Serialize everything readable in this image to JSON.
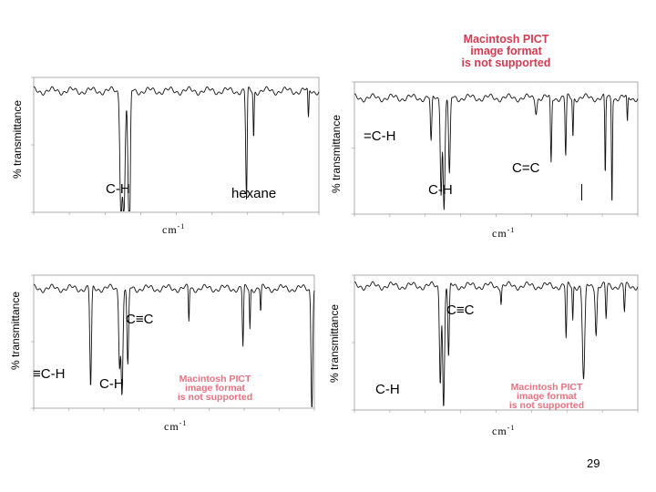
{
  "page_number": "29",
  "pict_notice": {
    "lines": [
      "Macintosh PICT",
      "image format",
      "is not supported"
    ],
    "color": "#d23c52"
  },
  "chart_data": [
    {
      "type": "line",
      "ylabel": "% transmittance",
      "xlabel": "cm-1",
      "xlim": [
        4000,
        600
      ],
      "ylim": [
        0,
        100
      ],
      "annotations": [
        "C-H",
        "hexane"
      ],
      "series": [
        {
          "baseline": 90,
          "bands": [
            {
              "x": 2960,
              "depth": 88,
              "width": 18
            },
            {
              "x": 2925,
              "depth": 92,
              "width": 20
            },
            {
              "x": 2870,
              "depth": 70,
              "width": 15
            },
            {
              "x": 2855,
              "depth": 80,
              "width": 12
            },
            {
              "x": 1467,
              "depth": 55,
              "width": 12
            },
            {
              "x": 1460,
              "depth": 38,
              "width": 8
            },
            {
              "x": 1378,
              "depth": 35,
              "width": 8
            },
            {
              "x": 725,
              "depth": 22,
              "width": 8
            }
          ]
        }
      ]
    },
    {
      "type": "line",
      "ylabel": "% transmittance",
      "xlabel": "cm-1",
      "xlim": [
        4000,
        600
      ],
      "ylim": [
        0,
        100
      ],
      "annotations": [
        "=C-H",
        "C=C",
        "C-H"
      ],
      "series": [
        {
          "baseline": 88,
          "bands": [
            {
              "x": 3080,
              "depth": 35,
              "width": 12
            },
            {
              "x": 2960,
              "depth": 70,
              "width": 14
            },
            {
              "x": 2925,
              "depth": 85,
              "width": 16
            },
            {
              "x": 2860,
              "depth": 60,
              "width": 14
            },
            {
              "x": 1820,
              "depth": 10,
              "width": 14
            },
            {
              "x": 1640,
              "depth": 50,
              "width": 10
            },
            {
              "x": 1465,
              "depth": 45,
              "width": 10
            },
            {
              "x": 1378,
              "depth": 30,
              "width": 8
            },
            {
              "x": 990,
              "depth": 60,
              "width": 8
            },
            {
              "x": 910,
              "depth": 80,
              "width": 8
            },
            {
              "x": 725,
              "depth": 20,
              "width": 8
            }
          ]
        }
      ]
    },
    {
      "type": "line",
      "ylabel": "% transmittance",
      "xlabel": "cm-1",
      "xlim": [
        4000,
        600
      ],
      "ylim": [
        0,
        100
      ],
      "annotations": [
        "C≡C",
        "≡C-H",
        "C-H"
      ],
      "series": [
        {
          "baseline": 90,
          "bands": [
            {
              "x": 3310,
              "depth": 75,
              "width": 14
            },
            {
              "x": 2960,
              "depth": 55,
              "width": 14
            },
            {
              "x": 2930,
              "depth": 80,
              "width": 16
            },
            {
              "x": 2860,
              "depth": 60,
              "width": 14
            },
            {
              "x": 2120,
              "depth": 25,
              "width": 8
            },
            {
              "x": 1465,
              "depth": 45,
              "width": 10
            },
            {
              "x": 1380,
              "depth": 30,
              "width": 8
            },
            {
              "x": 1250,
              "depth": 18,
              "width": 8
            },
            {
              "x": 630,
              "depth": 92,
              "width": 14
            }
          ]
        }
      ]
    },
    {
      "type": "line",
      "ylabel": "% transmittance",
      "xlabel": "cm-1",
      "xlim": [
        4000,
        600
      ],
      "ylim": [
        0,
        100
      ],
      "annotations": [
        "C≡C",
        "C-H"
      ],
      "series": [
        {
          "baseline": 92,
          "bands": [
            {
              "x": 2970,
              "depth": 70,
              "width": 14
            },
            {
              "x": 2930,
              "depth": 90,
              "width": 16
            },
            {
              "x": 2870,
              "depth": 55,
              "width": 12
            },
            {
              "x": 2240,
              "depth": 12,
              "width": 8
            },
            {
              "x": 1460,
              "depth": 40,
              "width": 10
            },
            {
              "x": 1380,
              "depth": 25,
              "width": 8
            },
            {
              "x": 1250,
              "depth": 70,
              "width": 20
            },
            {
              "x": 1100,
              "depth": 35,
              "width": 14
            },
            {
              "x": 980,
              "depth": 25,
              "width": 10
            },
            {
              "x": 760,
              "depth": 20,
              "width": 10
            }
          ]
        }
      ]
    }
  ]
}
